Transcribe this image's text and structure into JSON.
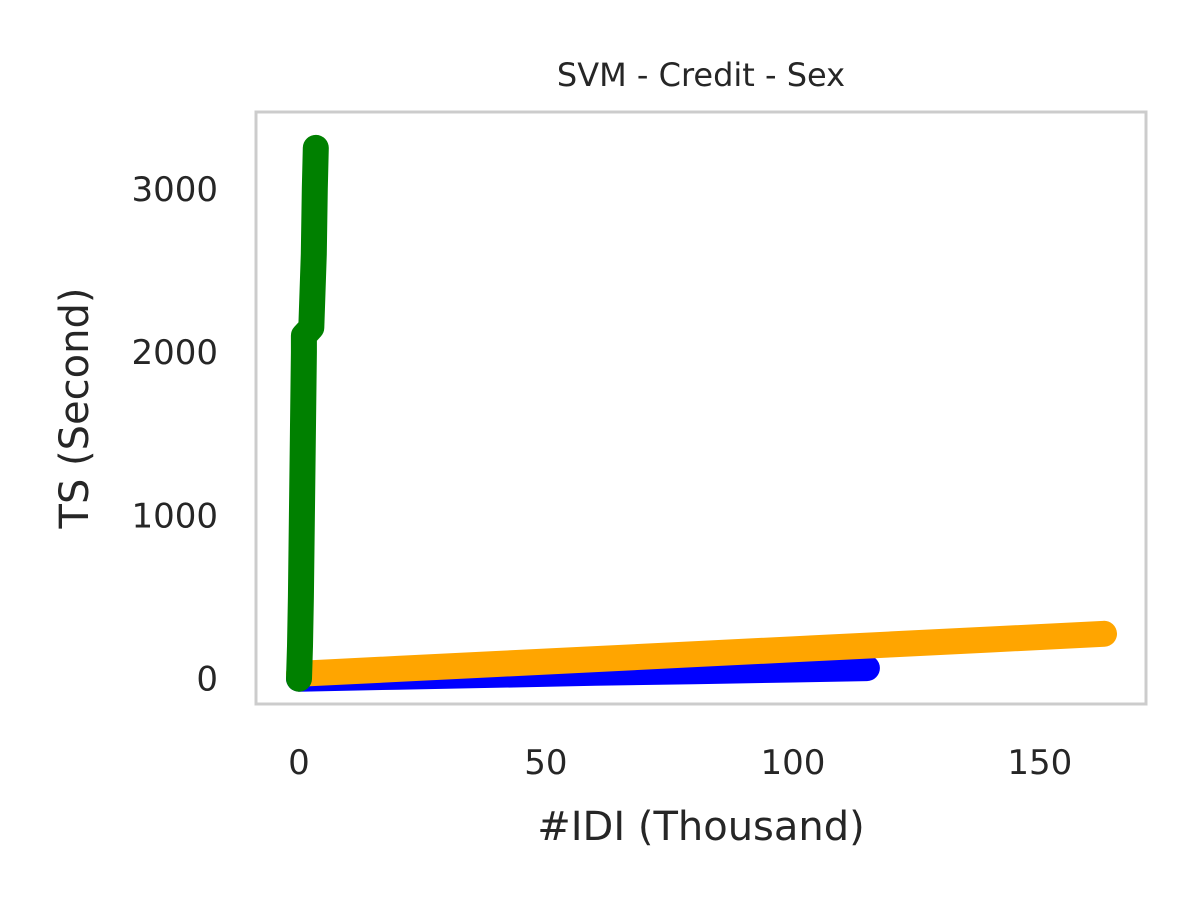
{
  "chart_data": {
    "type": "line",
    "title": "SVM - Credit - Sex",
    "xlabel": "#IDI (Thousand)",
    "ylabel": "TS (Second)",
    "xlim": [
      -8.7,
      171.5
    ],
    "ylim": [
      -155,
      3470
    ],
    "x_ticks": [
      0,
      50,
      100,
      150
    ],
    "y_ticks": [
      0,
      1000,
      2000,
      3000
    ],
    "grid": false,
    "legend": "none",
    "series": [
      {
        "color": "#0000ff",
        "x": [
          0,
          20,
          40,
          60,
          80,
          100,
          115
        ],
        "y": [
          0,
          12,
          24,
          36,
          46,
          56,
          65
        ]
      },
      {
        "color": "#ffa500",
        "x": [
          0,
          20,
          40,
          60,
          80,
          100,
          120,
          140,
          163
        ],
        "y": [
          30,
          60,
          90,
          120,
          150,
          180,
          210,
          240,
          275
        ]
      },
      {
        "color": "#008000",
        "x": [
          0,
          0.2,
          0.4,
          0.6,
          0.8,
          1.0,
          1.0,
          2.5,
          3.0,
          3.2,
          3.4
        ],
        "y": [
          0,
          200,
          500,
          1000,
          1500,
          2000,
          2100,
          2150,
          2600,
          3000,
          3250
        ]
      }
    ]
  }
}
